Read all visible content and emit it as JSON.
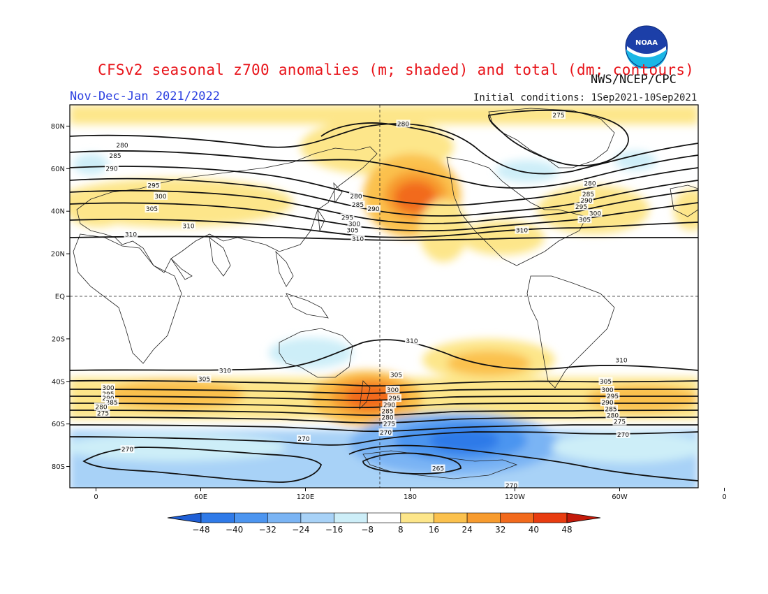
{
  "title": "CFSv2 seasonal z700 anomalies (m; shaded) and total (dm; contours)",
  "agency": "NWS/NCEP/CPC",
  "period": "Nov-Dec-Jan 2021/2022",
  "initial_conditions": "Initial conditions: 1Sep2021-10Sep2021",
  "logo_text": "NOAA",
  "lat_labels": [
    "80N",
    "60N",
    "40N",
    "20N",
    "EQ",
    "20S",
    "40S",
    "60S",
    "80S"
  ],
  "lon_labels": [
    "0",
    "60E",
    "120E",
    "180",
    "120W",
    "60W",
    "0"
  ],
  "colorbar": {
    "ticks": [
      "-48",
      "-40",
      "-32",
      "-24",
      "-16",
      "-8",
      "8",
      "16",
      "24",
      "32",
      "40",
      "48"
    ],
    "colors": [
      "#1f5fd6",
      "#2f7ae8",
      "#4c95f0",
      "#7ab4f4",
      "#a8d2f7",
      "#cdeef8",
      "#ffffff",
      "#fde68a",
      "#fbc14d",
      "#f79b2e",
      "#f26a1c",
      "#e83c10",
      "#c41a0a"
    ]
  },
  "contour_labels": [
    {
      "text": "280",
      "lon": 176,
      "lat": 81
    },
    {
      "text": "275",
      "lon": 265,
      "lat": 85
    },
    {
      "text": "285",
      "lon": 11,
      "lat": 66
    },
    {
      "text": "280",
      "lon": 15,
      "lat": 71
    },
    {
      "text": "290",
      "lon": 9,
      "lat": 60
    },
    {
      "text": "295",
      "lon": 33,
      "lat": 52
    },
    {
      "text": "300",
      "lon": 37,
      "lat": 47
    },
    {
      "text": "305",
      "lon": 32,
      "lat": 41
    },
    {
      "text": "310",
      "lon": 20,
      "lat": 29
    },
    {
      "text": "310",
      "lon": 53,
      "lat": 33
    },
    {
      "text": "280",
      "lon": 149,
      "lat": 47
    },
    {
      "text": "285",
      "lon": 150,
      "lat": 43
    },
    {
      "text": "290",
      "lon": 159,
      "lat": 41
    },
    {
      "text": "295",
      "lon": 144,
      "lat": 37
    },
    {
      "text": "300",
      "lon": 148,
      "lat": 34
    },
    {
      "text": "305",
      "lon": 147,
      "lat": 31
    },
    {
      "text": "310",
      "lon": 150,
      "lat": 27
    },
    {
      "text": "280",
      "lon": 283,
      "lat": 53
    },
    {
      "text": "285",
      "lon": 282,
      "lat": 48
    },
    {
      "text": "290",
      "lon": 281,
      "lat": 45
    },
    {
      "text": "295",
      "lon": 278,
      "lat": 42
    },
    {
      "text": "300",
      "lon": 286,
      "lat": 39
    },
    {
      "text": "305",
      "lon": 280,
      "lat": 36
    },
    {
      "text": "310",
      "lon": 244,
      "lat": 31
    },
    {
      "text": "310",
      "lon": 181,
      "lat": -21
    },
    {
      "text": "310",
      "lon": 301,
      "lat": -30
    },
    {
      "text": "310",
      "lon": 74,
      "lat": -35
    },
    {
      "text": "305",
      "lon": 62,
      "lat": -39
    },
    {
      "text": "300",
      "lon": 7,
      "lat": -43
    },
    {
      "text": "295",
      "lon": 7,
      "lat": -46
    },
    {
      "text": "290",
      "lon": 7,
      "lat": -48
    },
    {
      "text": "285",
      "lon": 9,
      "lat": -50
    },
    {
      "text": "280",
      "lon": 3,
      "lat": -52
    },
    {
      "text": "275",
      "lon": 4,
      "lat": -55
    },
    {
      "text": "305",
      "lon": 172,
      "lat": -37
    },
    {
      "text": "300",
      "lon": 170,
      "lat": -44
    },
    {
      "text": "295",
      "lon": 171,
      "lat": -48
    },
    {
      "text": "290",
      "lon": 168,
      "lat": -51
    },
    {
      "text": "285",
      "lon": 167,
      "lat": -54
    },
    {
      "text": "280",
      "lon": 167,
      "lat": -57
    },
    {
      "text": "275",
      "lon": 168,
      "lat": -60
    },
    {
      "text": "270",
      "lon": 166,
      "lat": -64
    },
    {
      "text": "305",
      "lon": 292,
      "lat": -40
    },
    {
      "text": "300",
      "lon": 293,
      "lat": -44
    },
    {
      "text": "295",
      "lon": 296,
      "lat": -47
    },
    {
      "text": "290",
      "lon": 293,
      "lat": -50
    },
    {
      "text": "285",
      "lon": 295,
      "lat": -53
    },
    {
      "text": "280",
      "lon": 296,
      "lat": -56
    },
    {
      "text": "275",
      "lon": 300,
      "lat": -59
    },
    {
      "text": "270",
      "lon": 302,
      "lat": -65
    },
    {
      "text": "270",
      "lon": 119,
      "lat": -67
    },
    {
      "text": "270",
      "lon": 18,
      "lat": -72
    },
    {
      "text": "265",
      "lon": 196,
      "lat": -81
    },
    {
      "text": "270",
      "lon": 238,
      "lat": -89
    }
  ]
}
